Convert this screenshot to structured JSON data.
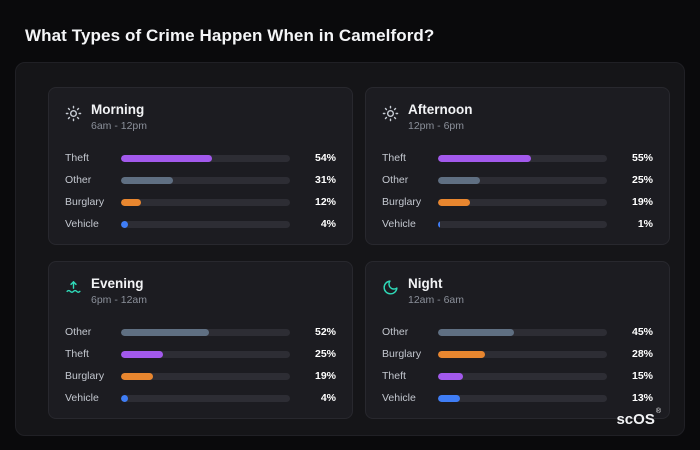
{
  "title": "What Types of Crime Happen When in Camelford?",
  "brand": {
    "name": "scOS",
    "registered": "®"
  },
  "chart_data": [
    {
      "type": "bar",
      "orientation": "horizontal",
      "title": "Morning",
      "subtitle": "6am - 12pm",
      "icon": "sun-icon",
      "xlim": [
        0,
        100
      ],
      "categories": [
        "Theft",
        "Other",
        "Burglary",
        "Vehicle"
      ],
      "values": [
        54,
        31,
        12,
        4
      ],
      "labels": [
        "54%",
        "31%",
        "12%",
        "4%"
      ],
      "colors": [
        "#a259ec",
        "#5f6f82",
        "#e8862f",
        "#3f7df5"
      ]
    },
    {
      "type": "bar",
      "orientation": "horizontal",
      "title": "Afternoon",
      "subtitle": "12pm - 6pm",
      "icon": "sun-icon",
      "xlim": [
        0,
        100
      ],
      "categories": [
        "Theft",
        "Other",
        "Burglary",
        "Vehicle"
      ],
      "values": [
        55,
        25,
        19,
        1
      ],
      "labels": [
        "55%",
        "25%",
        "19%",
        "1%"
      ],
      "colors": [
        "#a259ec",
        "#5f6f82",
        "#e8862f",
        "#3f7df5"
      ]
    },
    {
      "type": "bar",
      "orientation": "horizontal",
      "title": "Evening",
      "subtitle": "6pm - 12am",
      "icon": "sunset-icon",
      "xlim": [
        0,
        100
      ],
      "categories": [
        "Other",
        "Theft",
        "Burglary",
        "Vehicle"
      ],
      "values": [
        52,
        25,
        19,
        4
      ],
      "labels": [
        "52%",
        "25%",
        "19%",
        "4%"
      ],
      "colors": [
        "#5f6f82",
        "#a259ec",
        "#e8862f",
        "#3f7df5"
      ]
    },
    {
      "type": "bar",
      "orientation": "horizontal",
      "title": "Night",
      "subtitle": "12am - 6am",
      "icon": "moon-icon",
      "xlim": [
        0,
        100
      ],
      "categories": [
        "Other",
        "Burglary",
        "Theft",
        "Vehicle"
      ],
      "values": [
        45,
        28,
        15,
        13
      ],
      "labels": [
        "45%",
        "28%",
        "15%",
        "13%"
      ],
      "colors": [
        "#5f6f82",
        "#e8862f",
        "#a259ec",
        "#3f7df5"
      ]
    }
  ]
}
